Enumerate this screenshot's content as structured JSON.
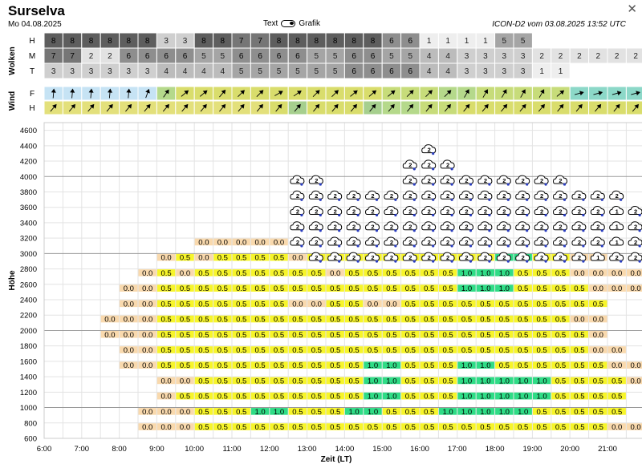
{
  "header": {
    "title": "Surselva",
    "date": "Mo 04.08.2025",
    "toggle_left": "Text",
    "toggle_right": "Grafik",
    "model": "ICON-D2 vom 03.08.2025 13:52 UTC",
    "close_icon": "close-icon"
  },
  "sections": {
    "clouds_label": "Wolken",
    "wind_label": "Wind",
    "height_label": "Höhe",
    "x_label": "Zeit (LT)"
  },
  "cloud_rows": [
    {
      "label": "H",
      "values": [
        "8",
        "8",
        "8",
        "8",
        "8",
        "8",
        "3",
        "3",
        "8",
        "8",
        "7",
        "7",
        "8",
        "8",
        "8",
        "8",
        "8",
        "8",
        "6",
        "6",
        "1",
        "1",
        "1",
        "1",
        "5",
        "5",
        "",
        "",
        "",
        "",
        "",
        ""
      ]
    },
    {
      "label": "M",
      "values": [
        "7",
        "7",
        "2",
        "2",
        "6",
        "6",
        "6",
        "6",
        "5",
        "5",
        "6",
        "6",
        "6",
        "6",
        "5",
        "5",
        "6",
        "6",
        "5",
        "5",
        "4",
        "4",
        "3",
        "3",
        "3",
        "3",
        "2",
        "2",
        "2",
        "2",
        "2",
        "2"
      ]
    },
    {
      "label": "T",
      "values": [
        "3",
        "3",
        "3",
        "3",
        "3",
        "3",
        "4",
        "4",
        "4",
        "4",
        "5",
        "5",
        "5",
        "5",
        "5",
        "5",
        "6",
        "6",
        "6",
        "6",
        "4",
        "4",
        "3",
        "3",
        "3",
        "3",
        "1",
        "1",
        "",
        "",
        "",
        ""
      ]
    }
  ],
  "wind_rows": [
    {
      "label": "F",
      "colors": [
        "#c6e3f4",
        "#c6e3f4",
        "#c6e3f4",
        "#c6e3f4",
        "#c6e3f4",
        "#c6e3f4",
        "#b5d98b",
        "#d9dd6c",
        "#d9dd6c",
        "#d9dd6c",
        "#d9dd6c",
        "#d9dd6c",
        "#d9dd6c",
        "#d9dd6c",
        "#d9dd6c",
        "#d9dd6c",
        "#d9dd6c",
        "#d9dd6c",
        "#c7dc7a",
        "#c7dc7a",
        "#c7dc7a",
        "#b5d98b",
        "#b5d98b",
        "#c7dc7a",
        "#c7dc7a",
        "#c7dc7a",
        "#c7dc7a",
        "#c7dc7a",
        "#8cd8c8",
        "#8cd8c8",
        "#8cd8c8",
        "#8cd8c8"
      ],
      "dirs": [
        5,
        5,
        5,
        5,
        5,
        20,
        35,
        50,
        50,
        40,
        45,
        45,
        60,
        55,
        45,
        45,
        50,
        50,
        50,
        45,
        45,
        45,
        30,
        30,
        30,
        30,
        30,
        50,
        75,
        75,
        75,
        75
      ]
    },
    {
      "label": "H",
      "colors": [
        "#e3e07b",
        "#e3e07b",
        "#e3e07b",
        "#e3e07b",
        "#e3e07b",
        "#e3e07b",
        "#e3e07b",
        "#e3e07b",
        "#e3e07b",
        "#e3e07b",
        "#e3e07b",
        "#e3e07b",
        "#d9dd6c",
        "#a6cf8e",
        "#d9dd6c",
        "#d9dd6c",
        "#d9dd6c",
        "#a6cf8e",
        "#b5d98b",
        "#b5d98b",
        "#c7dc7a",
        "#c7dc7a",
        "#d9dd6c",
        "#d9dd6c",
        "#d9dd6c",
        "#d9dd6c",
        "#d9dd6c",
        "#d9dd6c",
        "#d9dd6c",
        "#d9dd6c",
        "#d9dd6c",
        "#d9dd6c"
      ],
      "dirs": [
        40,
        40,
        40,
        40,
        40,
        40,
        40,
        40,
        40,
        40,
        40,
        40,
        40,
        40,
        40,
        40,
        40,
        40,
        40,
        40,
        40,
        40,
        40,
        40,
        40,
        40,
        40,
        40,
        40,
        40,
        40,
        40
      ]
    }
  ],
  "chart_data": {
    "type": "heatmap",
    "xlabel": "Zeit (LT)",
    "ylabel": "Höhe",
    "x_ticks": [
      "6:00",
      "7:00",
      "8:00",
      "9:00",
      "10:00",
      "11:00",
      "12:00",
      "13:00",
      "14:00",
      "15:00",
      "16:00",
      "17:00",
      "18:00",
      "19:00",
      "20:00",
      "21:00"
    ],
    "y_ticks": [
      600,
      800,
      1000,
      1200,
      1400,
      1600,
      1800,
      2000,
      2200,
      2400,
      2600,
      2800,
      3000,
      3200,
      3400,
      3600,
      3800,
      4000,
      4200,
      4400,
      4600
    ],
    "time_start": "6:00",
    "slots_per_hour": 2,
    "level_step_m": 100,
    "value_colors": {
      "0.0": "#f9d9ad",
      "0.5": "#f7f52a",
      "1.0": "#2fdc86"
    },
    "cells": [
      {
        "row": 700,
        "start": 5,
        "values": [
          "0.0",
          "0.0",
          "0.0",
          "0.5",
          "0.5",
          "0.5",
          "0.5",
          "0.5",
          "0.5",
          "0.5",
          "0.5",
          "0.5",
          "0.5",
          "0.5",
          "0.5",
          "0.5",
          "0.5",
          "0.5",
          "0.5",
          "0.5",
          "0.5",
          "0.5",
          "0.5",
          "0.5",
          "0.5",
          "0.0",
          "0.0"
        ]
      },
      {
        "row": 900,
        "start": 5,
        "values": [
          "0.0",
          "0.0",
          "0.0",
          "0.5",
          "0.5",
          "0.5",
          "1.0",
          "1.0",
          "0.5",
          "0.5",
          "0.5",
          "1.0",
          "1.0",
          "0.5",
          "0.5",
          "0.5",
          "1.0",
          "1.0",
          "1.0",
          "1.0",
          "1.0",
          "0.5",
          "0.5",
          "0.5",
          "0.5",
          "0.5"
        ]
      },
      {
        "row": 1100,
        "start": 6,
        "values": [
          "0.0",
          "0.5",
          "0.5",
          "0.5",
          "0.5",
          "0.5",
          "0.5",
          "0.5",
          "0.5",
          "0.5",
          "0.5",
          "1.0",
          "1.0",
          "0.5",
          "0.5",
          "0.5",
          "1.0",
          "1.0",
          "1.0",
          "1.0",
          "1.0",
          "0.5",
          "0.5",
          "0.5",
          "0.5"
        ]
      },
      {
        "row": 1300,
        "start": 6,
        "values": [
          "0.0",
          "0.0",
          "0.5",
          "0.5",
          "0.5",
          "0.5",
          "0.5",
          "0.5",
          "0.5",
          "0.5",
          "0.5",
          "1.0",
          "1.0",
          "0.5",
          "0.5",
          "0.5",
          "1.0",
          "1.0",
          "1.0",
          "1.0",
          "1.0",
          "0.5",
          "0.5",
          "0.5",
          "0.5",
          "0.0",
          "0.0"
        ]
      },
      {
        "row": 1500,
        "start": 4,
        "values": [
          "0.0",
          "0.0",
          "0.5",
          "0.5",
          "0.5",
          "0.5",
          "0.5",
          "0.5",
          "0.5",
          "0.5",
          "0.5",
          "0.5",
          "0.5",
          "1.0",
          "1.0",
          "0.5",
          "0.5",
          "0.5",
          "1.0",
          "1.0",
          "0.5",
          "0.5",
          "0.5",
          "0.5",
          "0.5",
          "0.5",
          "0.0",
          "0.0",
          "0.0",
          "0.0"
        ]
      },
      {
        "row": 1700,
        "start": 4,
        "values": [
          "0.0",
          "0.0",
          "0.5",
          "0.5",
          "0.5",
          "0.5",
          "0.5",
          "0.5",
          "0.5",
          "0.5",
          "0.5",
          "0.5",
          "0.5",
          "0.5",
          "0.5",
          "0.5",
          "0.5",
          "0.5",
          "0.5",
          "0.5",
          "0.5",
          "0.5",
          "0.5",
          "0.5",
          "0.5",
          "0.0",
          "0.0"
        ]
      },
      {
        "row": 1900,
        "start": 3,
        "values": [
          "0.0",
          "0.0",
          "0.0",
          "0.5",
          "0.5",
          "0.5",
          "0.5",
          "0.5",
          "0.5",
          "0.5",
          "0.5",
          "0.5",
          "0.5",
          "0.5",
          "0.5",
          "0.5",
          "0.5",
          "0.5",
          "0.5",
          "0.5",
          "0.5",
          "0.5",
          "0.5",
          "0.5",
          "0.5",
          "0.5",
          "0.0"
        ]
      },
      {
        "row": 2100,
        "start": 3,
        "values": [
          "0.0",
          "0.0",
          "0.0",
          "0.5",
          "0.5",
          "0.5",
          "0.5",
          "0.5",
          "0.5",
          "0.5",
          "0.5",
          "0.5",
          "0.5",
          "0.5",
          "0.5",
          "0.5",
          "0.5",
          "0.5",
          "0.5",
          "0.5",
          "0.5",
          "0.5",
          "0.5",
          "0.5",
          "0.5",
          "0.0",
          "0.0"
        ]
      },
      {
        "row": 2300,
        "start": 4,
        "values": [
          "0.0",
          "0.0",
          "0.5",
          "0.5",
          "0.5",
          "0.5",
          "0.5",
          "0.5",
          "0.5",
          "0.0",
          "0.0",
          "0.5",
          "0.5",
          "0.0",
          "0.0",
          "0.5",
          "0.5",
          "0.5",
          "0.5",
          "0.5",
          "0.5",
          "0.5",
          "0.5",
          "0.5",
          "0.5",
          "0.5"
        ]
      },
      {
        "row": 2500,
        "start": 4,
        "values": [
          "0.0",
          "0.0",
          "0.5",
          "0.5",
          "0.5",
          "0.5",
          "0.5",
          "0.5",
          "0.5",
          "0.5",
          "0.5",
          "0.5",
          "0.5",
          "0.5",
          "0.5",
          "0.5",
          "0.5",
          "0.5",
          "1.0",
          "1.0",
          "1.0",
          "0.5",
          "0.5",
          "0.5",
          "0.5",
          "0.0",
          "0.0",
          "0.0",
          "0.0"
        ]
      },
      {
        "row": 2700,
        "start": 5,
        "values": [
          "0.0",
          "0.5",
          "0.0",
          "0.5",
          "0.5",
          "0.5",
          "0.5",
          "0.5",
          "0.5",
          "0.5",
          "0.0",
          "0.5",
          "0.5",
          "0.5",
          "0.5",
          "0.5",
          "0.5",
          "1.0",
          "1.0",
          "1.0",
          "0.5",
          "0.5",
          "0.5",
          "0.0",
          "0.0",
          "0.0",
          "0.0",
          "0.0"
        ]
      },
      {
        "row": 2900,
        "start": 6,
        "values": [
          "0.0",
          "0.5",
          "0.0",
          "0.5",
          "0.5",
          "0.5",
          "0.5",
          "0.0",
          "0.5",
          "0.5",
          "0.5",
          "0.5",
          "0.5",
          "0.5",
          "0.5",
          "0.5",
          "0.5",
          "0.5",
          "1.0",
          "1.0",
          "0.5",
          "0.5",
          "0.0",
          "0.0"
        ]
      },
      {
        "row": 3100,
        "start": 8,
        "values": [
          "0.0",
          "0.0",
          "0.0",
          "0.0",
          "0.0"
        ]
      }
    ],
    "cloud_symbols": [
      {
        "row": 2900,
        "start": 14,
        "values": [
          "2",
          "2",
          "2",
          "2",
          "2",
          "2",
          "2",
          "2",
          "2",
          "2",
          "2",
          "2",
          "2",
          "2",
          "2",
          "1",
          "2",
          "2"
        ]
      },
      {
        "row": 3100,
        "start": 13,
        "values": [
          "2",
          "2",
          "2",
          "2",
          "2",
          "2",
          "2",
          "2",
          "2",
          "2",
          "2",
          "2",
          "2",
          "2",
          "2",
          "2",
          "2",
          "1",
          "2",
          "2",
          "2"
        ]
      },
      {
        "row": 3300,
        "start": 13,
        "values": [
          "2",
          "2",
          "2",
          "2",
          "2",
          "2",
          "2",
          "2",
          "2",
          "2",
          "2",
          "2",
          "2",
          "2",
          "2",
          "2",
          "2",
          "1",
          "2",
          "2",
          "2"
        ]
      },
      {
        "row": 3500,
        "start": 13,
        "values": [
          "2",
          "2",
          "2",
          "2",
          "2",
          "2",
          "2",
          "2",
          "2",
          "2",
          "2",
          "2",
          "2",
          "2",
          "2",
          "2",
          "2",
          "1",
          "2",
          "2",
          "2"
        ]
      },
      {
        "row": 3700,
        "start": 13,
        "values": [
          "2",
          "2",
          "2",
          "2",
          "2",
          "2",
          "2",
          "2",
          "2",
          "2",
          "2",
          "2",
          "2",
          "2",
          "2",
          "2",
          "2",
          "2",
          "",
          "2",
          "2",
          "2"
        ]
      },
      {
        "row": 3900,
        "start": 13,
        "values": [
          "2",
          "2",
          "",
          "",
          "",
          "",
          "2",
          "2",
          "2",
          "2",
          "2",
          "2",
          "2",
          "2",
          "2",
          "",
          "",
          "",
          "",
          "2",
          "2",
          "2"
        ]
      },
      {
        "row": 4100,
        "start": 19,
        "values": [
          "2",
          "2",
          "2"
        ]
      },
      {
        "row": 4300,
        "start": 20,
        "values": [
          "2"
        ]
      }
    ]
  }
}
